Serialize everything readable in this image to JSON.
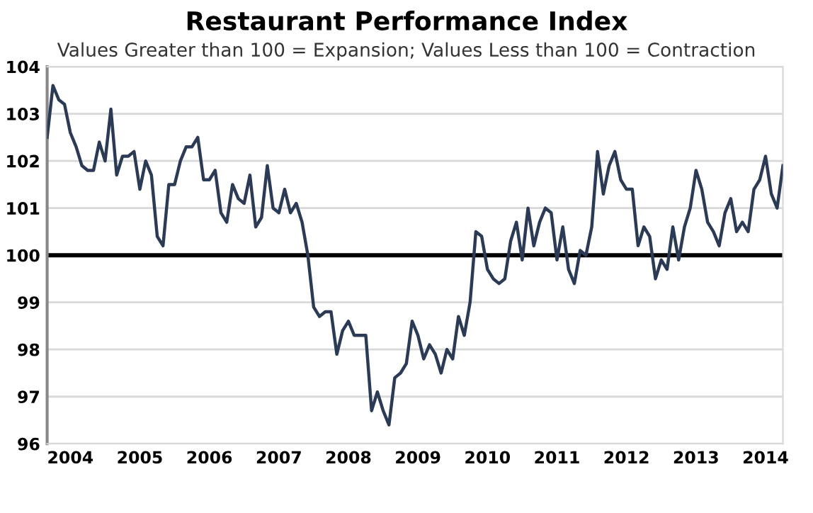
{
  "chart_data": {
    "type": "line",
    "title": "Restaurant Performance Index",
    "subtitle": "Values Greater than 100 = Expansion; Values Less than 100 = Contraction",
    "x": [
      "2003-09",
      "2003-10",
      "2003-11",
      "2003-12",
      "2004-01",
      "2004-02",
      "2004-03",
      "2004-04",
      "2004-05",
      "2004-06",
      "2004-07",
      "2004-08",
      "2004-09",
      "2004-10",
      "2004-11",
      "2004-12",
      "2005-01",
      "2005-02",
      "2005-03",
      "2005-04",
      "2005-05",
      "2005-06",
      "2005-07",
      "2005-08",
      "2005-09",
      "2005-10",
      "2005-11",
      "2005-12",
      "2006-01",
      "2006-02",
      "2006-03",
      "2006-04",
      "2006-05",
      "2006-06",
      "2006-07",
      "2006-08",
      "2006-09",
      "2006-10",
      "2006-11",
      "2006-12",
      "2007-01",
      "2007-02",
      "2007-03",
      "2007-04",
      "2007-05",
      "2007-06",
      "2007-07",
      "2007-08",
      "2007-09",
      "2007-10",
      "2007-11",
      "2007-12",
      "2008-01",
      "2008-02",
      "2008-03",
      "2008-04",
      "2008-05",
      "2008-06",
      "2008-07",
      "2008-08",
      "2008-09",
      "2008-10",
      "2008-11",
      "2008-12",
      "2009-01",
      "2009-02",
      "2009-03",
      "2009-04",
      "2009-05",
      "2009-06",
      "2009-07",
      "2009-08",
      "2009-09",
      "2009-10",
      "2009-11",
      "2009-12",
      "2010-01",
      "2010-02",
      "2010-03",
      "2010-04",
      "2010-05",
      "2010-06",
      "2010-07",
      "2010-08",
      "2010-09",
      "2010-10",
      "2010-11",
      "2010-12",
      "2011-01",
      "2011-02",
      "2011-03",
      "2011-04",
      "2011-05",
      "2011-06",
      "2011-07",
      "2011-08",
      "2011-09",
      "2011-10",
      "2011-11",
      "2011-12",
      "2012-01",
      "2012-02",
      "2012-03",
      "2012-04",
      "2012-05",
      "2012-06",
      "2012-07",
      "2012-08",
      "2012-09",
      "2012-10",
      "2012-11",
      "2012-12",
      "2013-01",
      "2013-02",
      "2013-03",
      "2013-04",
      "2013-05",
      "2013-06",
      "2013-07",
      "2013-08",
      "2013-09",
      "2013-10",
      "2013-11",
      "2013-12",
      "2014-01",
      "2014-02",
      "2014-03",
      "2014-04"
    ],
    "series": [
      {
        "color": "#2b3a55",
        "values": [
          102.5,
          103.6,
          103.3,
          103.2,
          102.6,
          102.3,
          101.9,
          101.8,
          101.8,
          102.4,
          102.0,
          103.1,
          101.7,
          102.1,
          102.1,
          102.2,
          101.4,
          102.0,
          101.7,
          100.4,
          100.2,
          101.5,
          101.5,
          102.0,
          102.3,
          102.3,
          102.5,
          101.6,
          101.6,
          101.8,
          100.9,
          100.7,
          101.5,
          101.2,
          101.1,
          101.7,
          100.6,
          100.8,
          101.9,
          101.0,
          100.9,
          101.4,
          100.9,
          101.1,
          100.7,
          100.0,
          98.9,
          98.7,
          98.8,
          98.8,
          97.9,
          98.4,
          98.6,
          98.3,
          98.3,
          98.3,
          96.7,
          97.1,
          96.7,
          96.4,
          97.4,
          97.5,
          97.7,
          98.6,
          98.3,
          97.8,
          98.1,
          97.9,
          97.5,
          98.0,
          97.8,
          98.7,
          98.3,
          99.0,
          100.5,
          100.4,
          99.7,
          99.5,
          99.4,
          99.5,
          100.3,
          100.7,
          99.9,
          101.0,
          100.2,
          100.7,
          101.0,
          100.9,
          99.9,
          100.6,
          99.7,
          99.4,
          100.1,
          100.0,
          100.6,
          102.2,
          101.3,
          101.9,
          102.2,
          101.6,
          101.4,
          101.4,
          100.2,
          100.6,
          100.4,
          99.5,
          99.9,
          99.7,
          100.6,
          99.9,
          100.6,
          101.0,
          101.8,
          101.4,
          100.7,
          100.5,
          100.2,
          100.9,
          101.2,
          100.5,
          100.7,
          100.5,
          101.4,
          101.6,
          102.1,
          101.3,
          101.0,
          101.9
        ]
      }
    ],
    "xlim": [
      "2003-09",
      "2014-04"
    ],
    "xticks": [
      "2004",
      "2005",
      "2006",
      "2007",
      "2008",
      "2009",
      "2010",
      "2011",
      "2012",
      "2013",
      "2014"
    ],
    "ylim": [
      96,
      104
    ],
    "yticks": [
      96,
      97,
      98,
      99,
      100,
      101,
      102,
      103,
      104
    ],
    "ref_lines": [
      {
        "axis": "y",
        "value": 100,
        "color": "#000000"
      }
    ],
    "grid": "y",
    "legend": false,
    "marker": "none",
    "line_style": "solid"
  }
}
